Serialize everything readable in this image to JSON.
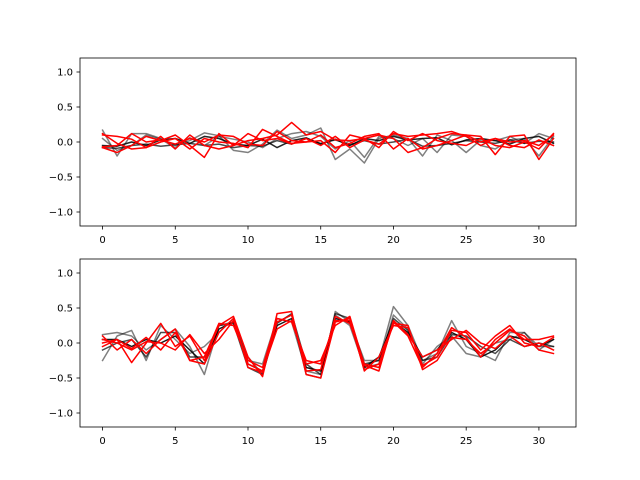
{
  "colors": {
    "background": "#ffffff",
    "axis": "#000000",
    "series_dark": "#000000",
    "series_red": "#ff0000"
  },
  "chart_data": [
    {
      "type": "line",
      "title": "",
      "xlabel": "",
      "ylabel": "",
      "xlim": [
        -1.55,
        32.55
      ],
      "ylim": [
        -1.2,
        1.2
      ],
      "xticks": [
        0,
        5,
        10,
        15,
        20,
        25,
        30
      ],
      "yticks": [
        -1.0,
        -0.5,
        0.0,
        0.5,
        1.0
      ],
      "xtick_labels": [
        "0",
        "5",
        "10",
        "15",
        "20",
        "25",
        "30"
      ],
      "ytick_labels": [
        "−1.0",
        "−0.5",
        "0.0",
        "0.5",
        "1.0"
      ],
      "grid": false,
      "series": [
        {
          "color": "#000000",
          "alpha": 0.5,
          "values": [
            0.17,
            -0.2,
            0.12,
            0.12,
            0.05,
            -0.05,
            0.02,
            0.13,
            0.09,
            -0.12,
            -0.15,
            -0.03,
            0.17,
            0.05,
            0.1,
            0.2,
            -0.25,
            -0.1,
            -0.3,
            0.05,
            0.1,
            0.05,
            -0.2,
            0.1,
            0.02,
            -0.15,
            0.03,
            0.02,
            0.08,
            -0.02,
            0.12,
            0.05
          ]
        },
        {
          "color": "#000000",
          "alpha": 0.5,
          "values": [
            0.05,
            -0.12,
            -0.05,
            0.1,
            0.04,
            -0.08,
            0.06,
            -0.05,
            0.08,
            0.04,
            0.0,
            -0.08,
            0.05,
            0.12,
            0.15,
            0.08,
            -0.1,
            0.02,
            -0.22,
            0.08,
            0.05,
            -0.05,
            0.05,
            -0.15,
            0.1,
            0.08,
            -0.05,
            -0.1,
            0.03,
            0.05,
            -0.2,
            0.08
          ]
        },
        {
          "color": "#000000",
          "alpha": 0.85,
          "values": [
            -0.05,
            -0.06,
            0.0,
            -0.05,
            0.03,
            0.05,
            -0.02,
            0.08,
            0.05,
            -0.03,
            -0.05,
            0.04,
            -0.08,
            0.02,
            0.06,
            -0.03,
            0.04,
            -0.05,
            0.05,
            0.02,
            0.08,
            0.03,
            0.05,
            0.06,
            -0.04,
            0.03,
            0.05,
            0.02,
            -0.03,
            0.05,
            0.08,
            -0.02
          ]
        },
        {
          "color": "#000000",
          "alpha": 0.7,
          "values": [
            -0.08,
            -0.09,
            -0.05,
            -0.03,
            -0.06,
            -0.04,
            -0.02,
            -0.05,
            -0.03,
            -0.08,
            -0.05,
            -0.06,
            0.02,
            -0.03,
            0.05,
            -0.02,
            0.03,
            -0.04,
            0.02,
            -0.03,
            0.0,
            0.04,
            -0.06,
            -0.05,
            -0.02,
            0.02,
            0.0,
            -0.02,
            0.03,
            -0.02,
            0.01,
            0.0
          ]
        },
        {
          "color": "#ff0000",
          "alpha": 1.0,
          "values": [
            0.1,
            0.08,
            0.04,
            -0.08,
            0.08,
            -0.1,
            0.1,
            -0.05,
            -0.1,
            -0.05,
            0.12,
            0.02,
            0.05,
            -0.03,
            0.05,
            -0.05,
            0.08,
            -0.08,
            0.03,
            -0.03,
            0.12,
            0.08,
            0.1,
            0.12,
            0.15,
            0.08,
            -0.05,
            0.05,
            0.0,
            0.02,
            -0.05,
            0.1
          ]
        },
        {
          "color": "#ff0000",
          "alpha": 1.0,
          "values": [
            -0.08,
            -0.15,
            -0.05,
            0.08,
            0.02,
            0.1,
            -0.05,
            -0.22,
            0.12,
            -0.05,
            0.02,
            0.05,
            0.1,
            0.28,
            0.1,
            0.15,
            0.03,
            0.02,
            0.05,
            0.1,
            0.05,
            -0.15,
            -0.08,
            0.05,
            0.12,
            0.1,
            0.08,
            -0.18,
            0.08,
            0.1,
            -0.25,
            0.05
          ]
        },
        {
          "color": "#ff0000",
          "alpha": 1.0,
          "values": [
            0.12,
            -0.02,
            -0.1,
            -0.08,
            0.0,
            0.05,
            -0.1,
            0.05,
            0.0,
            -0.02,
            -0.08,
            0.18,
            0.08,
            -0.02,
            0.0,
            0.02,
            -0.15,
            0.1,
            0.05,
            -0.08,
            0.15,
            0.02,
            0.12,
            0.02,
            -0.02,
            -0.05,
            0.05,
            -0.05,
            -0.08,
            0.0,
            -0.1,
            0.12
          ]
        },
        {
          "color": "#ff0000",
          "alpha": 1.0,
          "values": [
            -0.07,
            -0.05,
            0.12,
            0.0,
            0.03,
            -0.03,
            0.05,
            0.0,
            0.1,
            0.08,
            -0.03,
            -0.05,
            0.15,
            0.02,
            0.0,
            0.1,
            -0.08,
            -0.02,
            0.08,
            0.12,
            -0.1,
            0.05,
            -0.1,
            -0.05,
            0.02,
            0.1,
            0.0,
            0.05,
            -0.05,
            -0.08,
            0.03,
            -0.05
          ]
        }
      ]
    },
    {
      "type": "line",
      "title": "",
      "xlabel": "",
      "ylabel": "",
      "xlim": [
        -1.55,
        32.55
      ],
      "ylim": [
        -1.2,
        1.2
      ],
      "xticks": [
        0,
        5,
        10,
        15,
        20,
        25,
        30
      ],
      "yticks": [
        -1.0,
        -0.5,
        0.0,
        0.5,
        1.0
      ],
      "xtick_labels": [
        "0",
        "5",
        "10",
        "15",
        "20",
        "25",
        "30"
      ],
      "ytick_labels": [
        "−1.0",
        "−0.5",
        "0.0",
        "0.5",
        "1.0"
      ],
      "grid": false,
      "series": [
        {
          "color": "#000000",
          "alpha": 0.5,
          "values": [
            0.12,
            0.15,
            0.1,
            -0.1,
            0.05,
            0.2,
            -0.05,
            -0.45,
            0.25,
            0.3,
            -0.2,
            -0.45,
            0.3,
            0.4,
            -0.45,
            -0.5,
            0.45,
            0.3,
            -0.25,
            -0.25,
            0.52,
            0.25,
            -0.25,
            -0.15,
            0.32,
            -0.05,
            -0.15,
            -0.25,
            0.15,
            0.15,
            -0.1,
            0.05
          ]
        },
        {
          "color": "#000000",
          "alpha": 0.5,
          "values": [
            -0.25,
            0.1,
            0.18,
            -0.25,
            0.25,
            0.05,
            -0.15,
            -0.05,
            0.15,
            0.35,
            -0.25,
            -0.3,
            0.35,
            0.3,
            -0.4,
            -0.45,
            0.4,
            0.25,
            -0.35,
            -0.3,
            0.4,
            0.2,
            -0.3,
            -0.05,
            0.1,
            -0.15,
            -0.2,
            0.0,
            0.05,
            0.15,
            -0.05,
            -0.05
          ]
        },
        {
          "color": "#000000",
          "alpha": 0.9,
          "values": [
            0.05,
            0.05,
            -0.05,
            0.05,
            0.0,
            0.1,
            -0.1,
            -0.3,
            0.2,
            0.3,
            -0.3,
            -0.4,
            0.25,
            0.35,
            -0.35,
            -0.4,
            0.35,
            0.3,
            -0.35,
            -0.2,
            0.3,
            0.15,
            -0.2,
            -0.1,
            0.15,
            0.05,
            -0.2,
            -0.1,
            0.1,
            0.05,
            -0.05,
            0.05
          ]
        },
        {
          "color": "#000000",
          "alpha": 0.7,
          "values": [
            -0.1,
            0.0,
            0.05,
            -0.2,
            0.15,
            0.15,
            -0.2,
            -0.2,
            0.25,
            0.28,
            -0.35,
            -0.45,
            0.28,
            0.42,
            -0.3,
            -0.45,
            0.42,
            0.35,
            -0.3,
            -0.25,
            0.35,
            0.18,
            -0.25,
            -0.2,
            0.12,
            0.1,
            -0.05,
            -0.15,
            0.05,
            -0.05,
            0.0,
            -0.05
          ]
        },
        {
          "color": "#ff0000",
          "alpha": 1.0,
          "values": [
            0.0,
            0.05,
            -0.28,
            0.0,
            0.28,
            -0.05,
            0.1,
            -0.25,
            0.25,
            0.38,
            -0.2,
            -0.48,
            0.42,
            0.45,
            -0.45,
            -0.5,
            0.3,
            0.35,
            -0.4,
            -0.2,
            0.25,
            0.22,
            -0.32,
            -0.2,
            0.18,
            0.15,
            -0.1,
            0.1,
            0.25,
            0.0,
            -0.05,
            0.08
          ]
        },
        {
          "color": "#ff0000",
          "alpha": 1.0,
          "values": [
            0.1,
            -0.1,
            0.05,
            -0.15,
            0.05,
            0.2,
            -0.25,
            -0.3,
            0.15,
            0.35,
            -0.35,
            -0.42,
            0.3,
            0.4,
            -0.4,
            -0.38,
            0.38,
            0.28,
            -0.3,
            -0.35,
            0.28,
            0.25,
            -0.38,
            -0.25,
            0.08,
            0.05,
            -0.15,
            0.0,
            0.18,
            0.1,
            -0.1,
            -0.15
          ]
        },
        {
          "color": "#ff0000",
          "alpha": 1.0,
          "values": [
            -0.05,
            0.05,
            -0.08,
            0.08,
            -0.1,
            0.15,
            -0.25,
            -0.2,
            0.28,
            0.25,
            -0.25,
            -0.35,
            0.35,
            0.3,
            -0.25,
            -0.3,
            0.32,
            0.32,
            -0.38,
            -0.3,
            0.3,
            0.1,
            -0.35,
            -0.15,
            0.22,
            0.08,
            -0.2,
            0.05,
            0.2,
            0.05,
            0.05,
            0.1
          ]
        },
        {
          "color": "#ff0000",
          "alpha": 1.0,
          "values": [
            0.05,
            0.0,
            -0.1,
            0.02,
            0.0,
            -0.1,
            0.12,
            -0.15,
            0.05,
            0.32,
            -0.3,
            -0.4,
            0.2,
            0.32,
            -0.3,
            -0.25,
            0.25,
            0.38,
            -0.32,
            -0.4,
            0.32,
            0.12,
            -0.2,
            -0.1,
            0.05,
            0.18,
            0.0,
            -0.08,
            0.1,
            -0.05,
            0.0,
            -0.1
          ]
        }
      ]
    }
  ]
}
